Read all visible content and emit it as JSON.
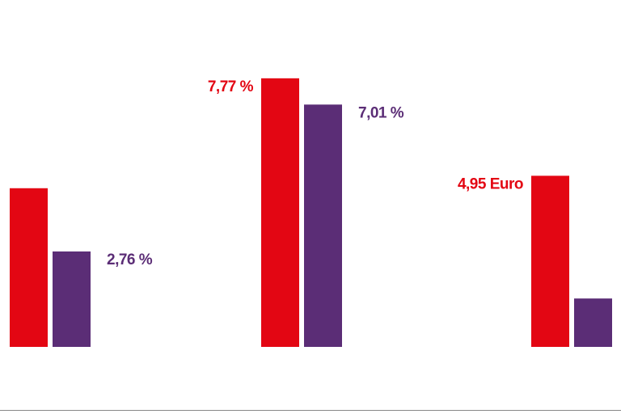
{
  "chart_data": {
    "type": "bar",
    "categories": [
      null,
      null,
      null
    ],
    "series": [
      {
        "color": "#e30613",
        "values": [
          4.59,
          7.77,
          4.95
        ],
        "value_labels": [
          null,
          "7,77 %",
          "4,95 Euro"
        ]
      },
      {
        "color": "#5b2d76",
        "values": [
          2.76,
          7.01,
          1.4
        ],
        "value_labels": [
          "2,76 %",
          "7,01 %",
          null
        ]
      }
    ]
  }
}
